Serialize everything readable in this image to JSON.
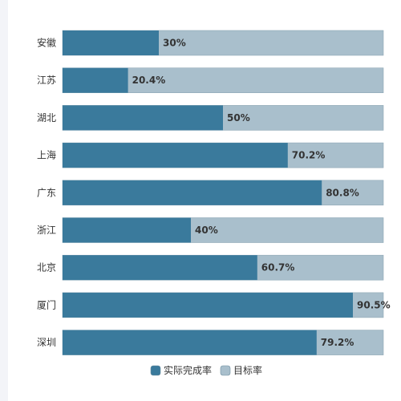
{
  "chart_data": {
    "type": "bar",
    "orientation": "horizontal",
    "categories": [
      "安徽",
      "江苏",
      "湖北",
      "上海",
      "广东",
      "浙江",
      "北京",
      "厦门",
      "深圳"
    ],
    "series": [
      {
        "name": "实际完成率",
        "values": [
          30,
          20.4,
          50,
          70.2,
          80.8,
          40,
          60.7,
          90.5,
          79.2
        ],
        "labels": [
          "30%",
          "20.4%",
          "50%",
          "70.2%",
          "80.8%",
          "40%",
          "60.7%",
          "90.5%",
          "79.2%"
        ],
        "color": "#3a7a9c"
      },
      {
        "name": "目标率",
        "values": [
          100,
          100,
          100,
          100,
          100,
          100,
          100,
          100,
          100
        ],
        "color": "#a9bfcc"
      }
    ],
    "xlim": [
      0,
      100
    ],
    "grid": false,
    "legend_position": "bottom-center"
  }
}
